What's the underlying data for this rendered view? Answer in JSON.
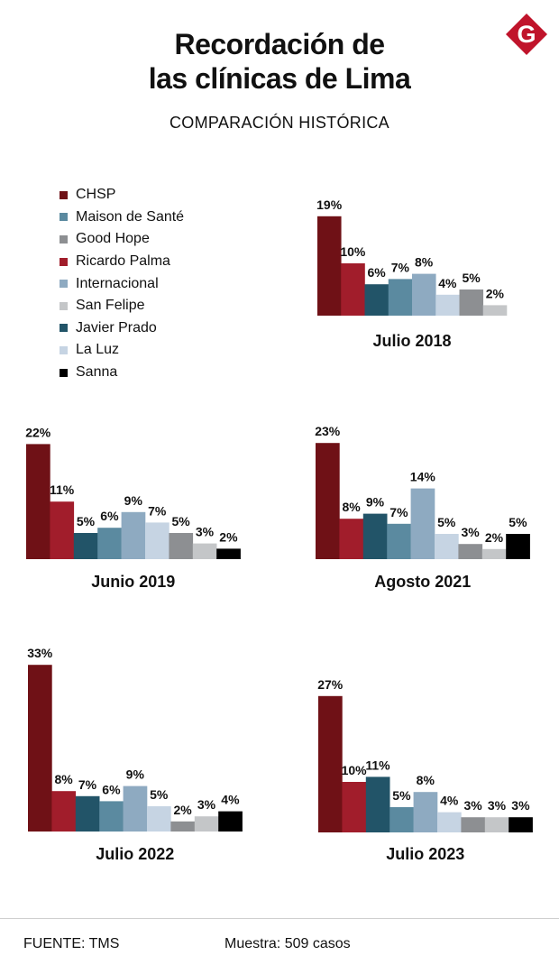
{
  "header": {
    "title_line1": "Recordación de",
    "title_line2": "las clínicas de Lima",
    "subtitle": "COMPARACIÓN HISTÓRICA",
    "logo_letter": "G",
    "logo_color": "#c0142b"
  },
  "chart_data": {
    "type": "bar",
    "title": "Recordación de las clínicas de Lima",
    "subtitle": "COMPARACIÓN HISTÓRICA",
    "legend_position": "top-left",
    "unit": "%",
    "series": [
      {
        "name": "CHSP",
        "color": "#6f1116"
      },
      {
        "name": "Maison de Santé",
        "color": "#5b8aa0"
      },
      {
        "name": "Good Hope",
        "color": "#8d8f92"
      },
      {
        "name": "Ricardo Palma",
        "color": "#a11d2b"
      },
      {
        "name": "Internacional",
        "color": "#8eaac1"
      },
      {
        "name": "San Felipe",
        "color": "#c4c6c8"
      },
      {
        "name": "Javier Prado",
        "color": "#225468"
      },
      {
        "name": "La Luz",
        "color": "#c6d4e3"
      },
      {
        "name": "Sanna",
        "color": "#000000"
      }
    ],
    "panels": [
      {
        "period": "Julio 2018",
        "bars": [
          {
            "clinic": "CHSP",
            "value": 19,
            "label": "19%"
          },
          {
            "clinic": "Ricardo Palma",
            "value": 10,
            "label": "10%"
          },
          {
            "clinic": "Javier Prado",
            "value": 6,
            "label": "6%"
          },
          {
            "clinic": "Maison de Santé",
            "value": 7,
            "label": "7%"
          },
          {
            "clinic": "Internacional",
            "value": 8,
            "label": "8%"
          },
          {
            "clinic": "La Luz",
            "value": 4,
            "label": "4%"
          },
          {
            "clinic": "Good Hope",
            "value": 5,
            "label": "5%"
          },
          {
            "clinic": "San Felipe",
            "value": 2,
            "label": "2%"
          }
        ]
      },
      {
        "period": "Junio 2019",
        "bars": [
          {
            "clinic": "CHSP",
            "value": 22,
            "label": "22%"
          },
          {
            "clinic": "Ricardo Palma",
            "value": 11,
            "label": "11%"
          },
          {
            "clinic": "Javier Prado",
            "value": 5,
            "label": "5%"
          },
          {
            "clinic": "Maison de Santé",
            "value": 6,
            "label": "6%"
          },
          {
            "clinic": "Internacional",
            "value": 9,
            "label": "9%"
          },
          {
            "clinic": "La Luz",
            "value": 7,
            "label": "7%"
          },
          {
            "clinic": "Good Hope",
            "value": 5,
            "label": "5%"
          },
          {
            "clinic": "San Felipe",
            "value": 3,
            "label": "3%"
          },
          {
            "clinic": "Sanna",
            "value": 2,
            "label": "2%"
          }
        ]
      },
      {
        "period": "Agosto 2021",
        "bars": [
          {
            "clinic": "CHSP",
            "value": 23,
            "label": "23%"
          },
          {
            "clinic": "Ricardo Palma",
            "value": 8,
            "label": "8%"
          },
          {
            "clinic": "Javier Prado",
            "value": 9,
            "label": "9%"
          },
          {
            "clinic": "Maison de Santé",
            "value": 7,
            "label": "7%"
          },
          {
            "clinic": "Internacional",
            "value": 14,
            "label": "14%"
          },
          {
            "clinic": "La Luz",
            "value": 5,
            "label": "5%"
          },
          {
            "clinic": "Good Hope",
            "value": 3,
            "label": "3%"
          },
          {
            "clinic": "San Felipe",
            "value": 2,
            "label": "2%"
          },
          {
            "clinic": "Sanna",
            "value": 5,
            "label": "5%"
          }
        ]
      },
      {
        "period": "Julio 2022",
        "bars": [
          {
            "clinic": "CHSP",
            "value": 33,
            "label": "33%"
          },
          {
            "clinic": "Ricardo Palma",
            "value": 8,
            "label": "8%"
          },
          {
            "clinic": "Javier Prado",
            "value": 7,
            "label": "7%"
          },
          {
            "clinic": "Maison de Santé",
            "value": 6,
            "label": "6%"
          },
          {
            "clinic": "Internacional",
            "value": 9,
            "label": "9%"
          },
          {
            "clinic": "La Luz",
            "value": 5,
            "label": "5%"
          },
          {
            "clinic": "Good Hope",
            "value": 2,
            "label": "2%"
          },
          {
            "clinic": "San Felipe",
            "value": 3,
            "label": "3%"
          },
          {
            "clinic": "Sanna",
            "value": 4,
            "label": "4%"
          }
        ]
      },
      {
        "period": "Julio 2023",
        "bars": [
          {
            "clinic": "CHSP",
            "value": 27,
            "label": "27%"
          },
          {
            "clinic": "Ricardo Palma",
            "value": 10,
            "label": "10%"
          },
          {
            "clinic": "Javier Prado",
            "value": 11,
            "label": "11%"
          },
          {
            "clinic": "Maison de Santé",
            "value": 5,
            "label": "5%"
          },
          {
            "clinic": "Internacional",
            "value": 8,
            "label": "8%"
          },
          {
            "clinic": "La Luz",
            "value": 4,
            "label": "4%"
          },
          {
            "clinic": "Good Hope",
            "value": 3,
            "label": "3%"
          },
          {
            "clinic": "San Felipe",
            "value": 3,
            "label": "3%"
          },
          {
            "clinic": "Sanna",
            "value": 3,
            "label": "3%"
          }
        ]
      }
    ]
  },
  "footer": {
    "source": "FUENTE: TMS",
    "sample": "Muestra: 509 casos"
  }
}
